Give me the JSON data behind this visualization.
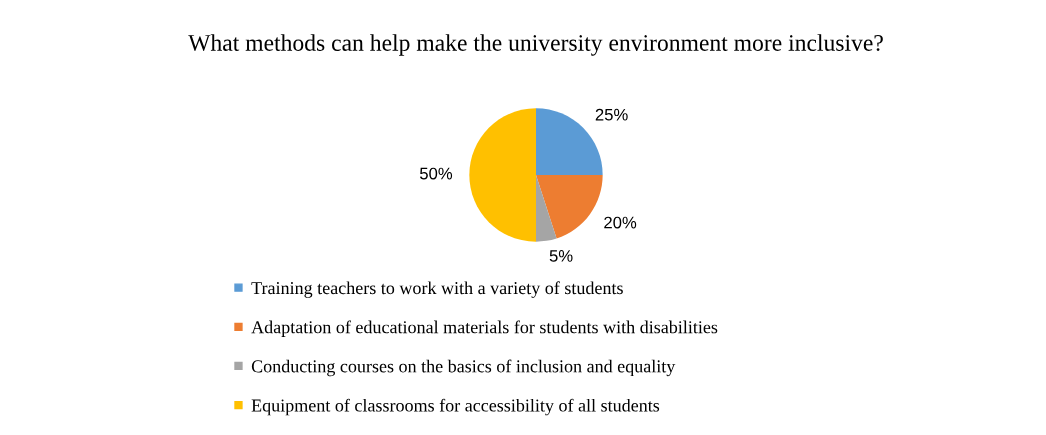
{
  "chart_data": {
    "type": "pie",
    "title": "What methods can help make the university environment more inclusive?",
    "categories": [
      "Training teachers to work with a variety of students",
      "Adaptation of educational materials for students with disabilities",
      "Conducting courses on the basics of inclusion and equality",
      "Equipment of classrooms for accessibility of all students"
    ],
    "values": [
      25,
      20,
      5,
      50
    ],
    "value_labels": [
      "25%",
      "20%",
      "5%",
      "50%"
    ],
    "colors": [
      "#5b9bd5",
      "#ed7d31",
      "#a5a5a5",
      "#ffc000"
    ],
    "legend": "bottom"
  }
}
